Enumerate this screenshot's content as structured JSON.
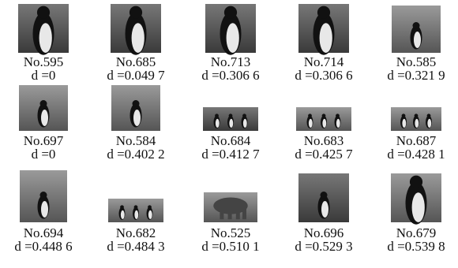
{
  "figure": {
    "items": [
      {
        "name": "No.595",
        "distance": "d =0"
      },
      {
        "name": "No.685",
        "distance": "d =0.049 7"
      },
      {
        "name": "No.713",
        "distance": "d =0.306 6"
      },
      {
        "name": "No.714",
        "distance": "d =0.306 6"
      },
      {
        "name": "No.585",
        "distance": "d =0.321 9"
      },
      {
        "name": "No.697",
        "distance": "d =0"
      },
      {
        "name": "No.584",
        "distance": "d =0.402 2"
      },
      {
        "name": "No.684",
        "distance": "d =0.412 7"
      },
      {
        "name": "No.683",
        "distance": "d =0.425 7"
      },
      {
        "name": "No.687",
        "distance": "d =0.428 1"
      },
      {
        "name": "No.694",
        "distance": "d =0.448 6"
      },
      {
        "name": "No.682",
        "distance": "d =0.484 3"
      },
      {
        "name": "No.525",
        "distance": "d =0.510 1"
      },
      {
        "name": "No.696",
        "distance": "d =0.529 3"
      },
      {
        "name": "No.679",
        "distance": "d =0.539 8"
      }
    ]
  }
}
